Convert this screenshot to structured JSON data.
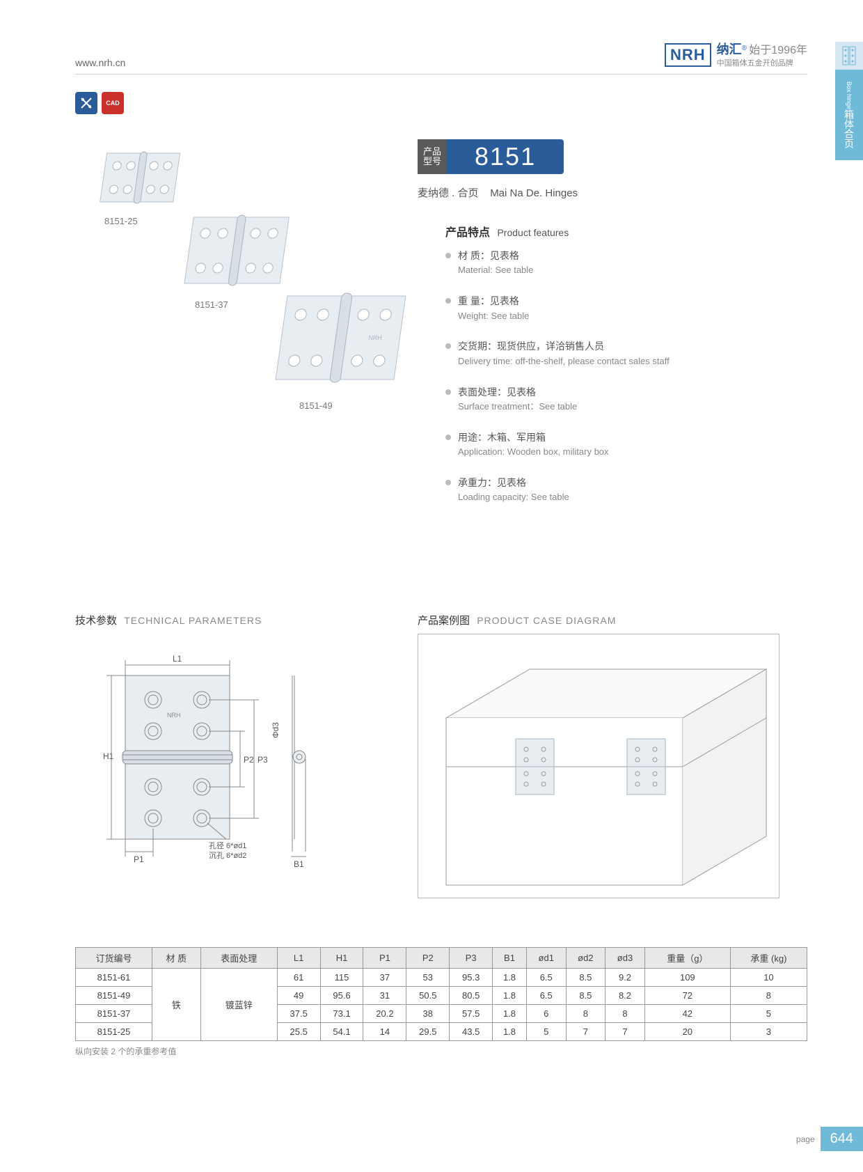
{
  "header": {
    "url": "www.nrh.cn",
    "logo": "NRH",
    "brand_cn": "纳汇",
    "since": "始于1996年",
    "slogan": "中国箱体五金开创品牌",
    "registered": "®"
  },
  "side_tab": {
    "cn": "箱体合页",
    "en": "Box hinge"
  },
  "badges": {
    "b1": "✕✕",
    "b2": "CAD"
  },
  "product": {
    "label": "产品\n型号",
    "number": "8151",
    "subtitle_cn": "麦纳德 . 合页",
    "subtitle_en": "Mai Na De. Hinges"
  },
  "image_labels": {
    "a": "8151-25",
    "b": "8151-37",
    "c": "8151-49"
  },
  "features_title": {
    "cn": "产品特点",
    "en": "Product features"
  },
  "features": [
    {
      "cn": "材 质：见表格",
      "en": "Material: See table"
    },
    {
      "cn": "重 量：见表格",
      "en": "Weight: See table"
    },
    {
      "cn": "交货期：现货供应，详洽销售人员",
      "en": "Delivery time: off-the-shelf, please contact sales staff"
    },
    {
      "cn": "表面处理：见表格",
      "en": "Surface treatment：See table"
    },
    {
      "cn": "用途：木箱、军用箱",
      "en": "Application: Wooden box, military box"
    },
    {
      "cn": "承重力：见表格",
      "en": "Loading capacity: See table"
    }
  ],
  "tech": {
    "cn": "技术参数",
    "en": "TECHNICAL PARAMETERS",
    "dims": {
      "L1": "L1",
      "H1": "H1",
      "P1": "P1",
      "P2": "P2",
      "P3": "P3",
      "B1": "B1",
      "d3": "Φd3"
    },
    "hole_note1": "孔径 6*ød1",
    "hole_note2": "沉孔 6*ød2"
  },
  "case": {
    "cn": "产品案例图",
    "en": "PRODUCT CASE DIAGRAM"
  },
  "table": {
    "columns": [
      "订货编号",
      "材 质",
      "表面处理",
      "L1",
      "H1",
      "P1",
      "P2",
      "P3",
      "B1",
      "ød1",
      "ød2",
      "ød3",
      "重量（g）",
      "承重 (kg)"
    ],
    "material": "铁",
    "surface": "镀蓝锌",
    "rows": [
      [
        "8151-61",
        "61",
        "115",
        "37",
        "53",
        "95.3",
        "1.8",
        "6.5",
        "8.5",
        "9.2",
        "109",
        "10"
      ],
      [
        "8151-49",
        "49",
        "95.6",
        "31",
        "50.5",
        "80.5",
        "1.8",
        "6.5",
        "8.5",
        "8.2",
        "72",
        "8"
      ],
      [
        "8151-37",
        "37.5",
        "73.1",
        "20.2",
        "38",
        "57.5",
        "1.8",
        "6",
        "8",
        "8",
        "42",
        "5"
      ],
      [
        "8151-25",
        "25.5",
        "54.1",
        "14",
        "29.5",
        "43.5",
        "1.8",
        "5",
        "7",
        "7",
        "20",
        "3"
      ]
    ],
    "note": "纵向安装 2 个的承重参考值"
  },
  "page": {
    "label": "page",
    "num": "644"
  },
  "colors": {
    "brand_blue": "#2a5c9a",
    "tab_blue": "#6fb9d9",
    "badge_red": "#c8302a",
    "hinge_fill": "#e8edf2",
    "hinge_stroke": "#b8c2cc",
    "diagram_stroke": "#888888"
  }
}
